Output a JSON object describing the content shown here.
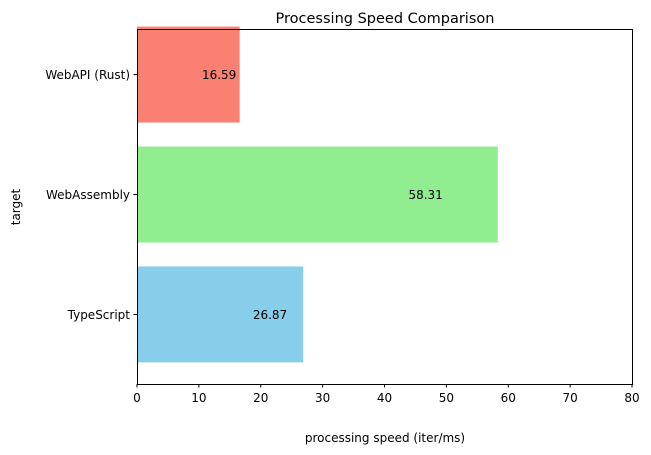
{
  "chart_data": {
    "type": "bar",
    "orientation": "horizontal",
    "title": "Processing Speed Comparison",
    "xlabel": "processing speed (iter/ms)",
    "ylabel": "target",
    "xlim": [
      0,
      80
    ],
    "xticks": [
      0,
      10,
      20,
      30,
      40,
      50,
      60,
      70,
      80
    ],
    "xtick_labels": [
      "0",
      "10",
      "20",
      "30",
      "40",
      "50",
      "60",
      "70",
      "80"
    ],
    "categories": [
      "TypeScript",
      "WebAssembly",
      "WebAPI (Rust)"
    ],
    "values": [
      26.87,
      58.31,
      16.59
    ],
    "value_labels": [
      "26.87",
      "58.31",
      "16.59"
    ],
    "colors": [
      "#87ceeb",
      "#90ee90",
      "#fa8072"
    ],
    "grid": false,
    "legend": "none"
  }
}
